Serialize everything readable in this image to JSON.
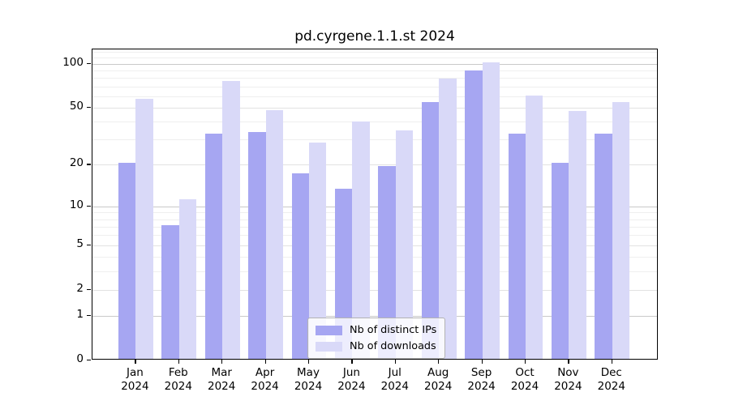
{
  "title": "pd.cyrgene.1.1.st 2024",
  "chart_data": {
    "type": "bar",
    "title": "pd.cyrgene.1.1.st 2024",
    "categories": [
      "Jan",
      "Feb",
      "Mar",
      "Apr",
      "May",
      "Jun",
      "Jul",
      "Aug",
      "Sep",
      "Oct",
      "Nov",
      "Dec"
    ],
    "year": "2024",
    "series": [
      {
        "name": "Nb of distinct IPs",
        "color": "#a6a6f2",
        "values": [
          20,
          7,
          32,
          33,
          17,
          13,
          19,
          53,
          88,
          32,
          20,
          32
        ]
      },
      {
        "name": "Nb of downloads",
        "color": "#d9d9f8",
        "values": [
          56,
          11,
          74,
          47,
          28,
          39,
          34,
          77,
          100,
          59,
          46,
          53
        ]
      }
    ],
    "xlabel": "",
    "ylabel": "",
    "y_axis": {
      "scale": "log10(1+y)",
      "tick_values": [
        0,
        1,
        2,
        5,
        10,
        20,
        50,
        100
      ],
      "decade_gridlines": [
        1,
        10,
        100
      ],
      "major_gridlines": [
        2,
        5,
        20,
        50
      ],
      "minor_gridlines": [
        3,
        4,
        6,
        7,
        8,
        9,
        30,
        40,
        60,
        70,
        80,
        90,
        110,
        120
      ],
      "top_value": 125
    },
    "legend": {
      "position": "bottom-center-inside",
      "entries": [
        "Nb of distinct IPs",
        "Nb of downloads"
      ]
    },
    "colors": {
      "distinct_ips_bar": "#a6a6f2",
      "downloads_bar": "#d9d9f8",
      "axis": "#000000",
      "grid_decade": "#c9c9c9",
      "grid_major": "#e2e2e2",
      "grid_minor": "#efefef"
    }
  }
}
